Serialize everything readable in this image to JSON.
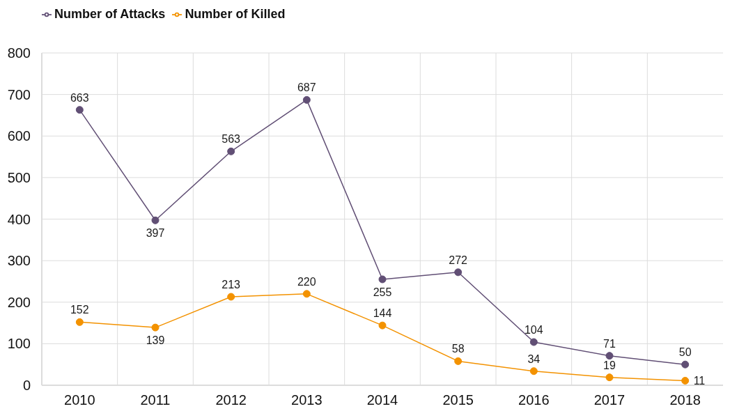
{
  "chart_data": {
    "type": "line",
    "categories": [
      "2010",
      "2011",
      "2012",
      "2013",
      "2014",
      "2015",
      "2016",
      "2017",
      "2018"
    ],
    "series": [
      {
        "name": "Number of Attacks",
        "color": "#614f75",
        "values": [
          663,
          397,
          563,
          687,
          255,
          272,
          104,
          71,
          50
        ]
      },
      {
        "name": "Number of Killed",
        "color": "#f39200",
        "values": [
          152,
          139,
          213,
          220,
          144,
          58,
          34,
          19,
          11
        ]
      }
    ],
    "ylim": [
      0,
      800
    ],
    "yticks": [
      0,
      100,
      200,
      300,
      400,
      500,
      600,
      700,
      800
    ],
    "grid": true,
    "legend": "top left",
    "marker": "circle",
    "line_style": "solid",
    "data_labels": true
  }
}
